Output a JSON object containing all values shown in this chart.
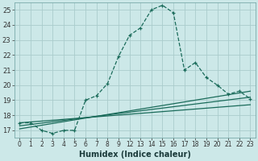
{
  "xlabel": "Humidex (Indice chaleur)",
  "background_color": "#cce8e8",
  "grid_color": "#aacccc",
  "line_color": "#1a6b5a",
  "xlim": [
    -0.5,
    21.5
  ],
  "ylim": [
    16.5,
    25.5
  ],
  "xtick_positions": [
    0,
    1,
    2,
    3,
    4,
    5,
    6,
    7,
    8,
    9,
    10,
    11,
    12,
    13,
    14,
    15,
    16,
    17,
    18,
    19,
    20,
    21
  ],
  "xtick_labels": [
    "0",
    "1",
    "2",
    "3",
    "4",
    "5",
    "6",
    "7",
    "8",
    "9",
    "12",
    "13",
    "14",
    "15",
    "16",
    "17",
    "18",
    "19",
    "20",
    "21",
    "22",
    "23"
  ],
  "yticks": [
    17,
    18,
    19,
    20,
    21,
    22,
    23,
    24,
    25
  ],
  "series1_x": [
    0,
    1,
    2,
    3,
    4,
    5,
    6,
    7,
    8,
    9,
    10,
    11,
    12,
    13,
    14,
    15,
    16,
    17,
    18,
    19,
    20,
    21
  ],
  "series1_y": [
    17.5,
    17.5,
    17.0,
    16.8,
    17.0,
    17.0,
    19.0,
    19.3,
    20.1,
    21.9,
    23.3,
    23.8,
    25.0,
    25.3,
    24.8,
    21.0,
    21.5,
    20.5,
    20.0,
    19.4,
    19.6,
    19.1
  ],
  "series2_x": [
    0,
    21
  ],
  "series2_y": [
    17.1,
    19.6
  ],
  "series3_x": [
    0,
    21
  ],
  "series3_y": [
    17.3,
    19.2
  ],
  "series4_x": [
    0,
    21
  ],
  "series4_y": [
    17.5,
    18.7
  ]
}
